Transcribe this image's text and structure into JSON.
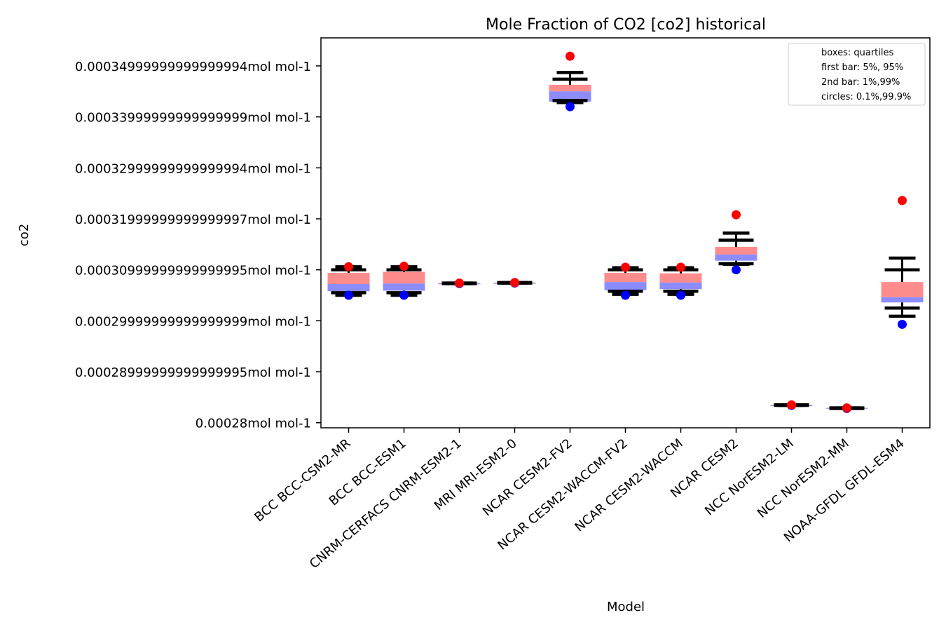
{
  "chart_data": {
    "type": "box",
    "title": "Mole Fraction of CO2 [co2] historical",
    "xlabel": "Model",
    "ylabel": "co2",
    "ylim": [
      0.000279,
      0.0003555
    ],
    "yticks": [
      {
        "value": 0.00028,
        "label": "0.00028mol mol-1"
      },
      {
        "value": 0.00029,
        "label": "0.00028999999999999995mol mol-1"
      },
      {
        "value": 0.0003,
        "label": "0.00029999999999999999mol mol-1"
      },
      {
        "value": 0.00031,
        "label": "0.00030999999999999995mol mol-1"
      },
      {
        "value": 0.00032,
        "label": "0.00031999999999999997mol mol-1"
      },
      {
        "value": 0.00033,
        "label": "0.00032999999999999994mol mol-1"
      },
      {
        "value": 0.00034,
        "label": "0.00033999999999999999mol mol-1"
      },
      {
        "value": 0.00035,
        "label": "0.00034999999999999994mol mol-1"
      }
    ],
    "legend": {
      "position": "top-right",
      "entries": [
        "boxes: quartiles",
        "first bar: 5%, 95%",
        "2nd bar: 1%,99%",
        "circles: 0.1%,99.9%"
      ]
    },
    "colors": {
      "upper_box": "#ff8c8c",
      "lower_box": "#8c8cff",
      "whisker": "#000000",
      "high_circle": "#ff0000",
      "low_circle": "#0000ff"
    },
    "categories": [
      "BCC BCC-CSM2-MR",
      "BCC BCC-ESM1",
      "CNRM-CERFACS CNRM-ESM2-1",
      "MRI MRI-ESM2-0",
      "NCAR CESM2-FV2",
      "NCAR CESM2-WACCM-FV2",
      "NCAR CESM2-WACCM",
      "NCAR CESM2",
      "NCC NorESM2-LM",
      "NCC NorESM2-MM",
      "NOAA-GFDL GFDL-ESM4"
    ],
    "series": [
      {
        "p0_1": 0.000305,
        "p1": 0.000305,
        "p5": 0.0003055,
        "q1": 0.0003058,
        "median": 0.0003072,
        "q3": 0.0003094,
        "p95": 0.00031,
        "p99": 0.0003106,
        "p99_9": 0.0003106
      },
      {
        "p0_1": 0.000305,
        "p1": 0.000305,
        "p5": 0.0003055,
        "q1": 0.0003059,
        "median": 0.0003073,
        "q3": 0.0003096,
        "p95": 0.00031,
        "p99": 0.0003106,
        "p99_9": 0.0003107
      },
      {
        "p0_1": 0.0003073,
        "p1": 0.0003073,
        "p5": 0.0003073,
        "q1": 0.0003072,
        "median": 0.0003073,
        "q3": 0.0003074,
        "p95": 0.0003074,
        "p99": 0.0003074,
        "p99_9": 0.0003074
      },
      {
        "p0_1": 0.0003074,
        "p1": 0.0003074,
        "p5": 0.0003074,
        "q1": 0.0003073,
        "median": 0.0003074,
        "q3": 0.0003075,
        "p95": 0.0003075,
        "p99": 0.0003075,
        "p99_9": 0.0003075
      },
      {
        "p0_1": 0.000342,
        "p1": 0.0003428,
        "p5": 0.0003432,
        "q1": 0.000343,
        "median": 0.000345,
        "q3": 0.0003463,
        "p95": 0.0003474,
        "p99": 0.0003487,
        "p99_9": 0.0003519
      },
      {
        "p0_1": 0.000305,
        "p1": 0.0003052,
        "p5": 0.0003058,
        "q1": 0.000306,
        "median": 0.0003076,
        "q3": 0.0003094,
        "p95": 0.00031,
        "p99": 0.0003104,
        "p99_9": 0.0003105
      },
      {
        "p0_1": 0.000305,
        "p1": 0.0003052,
        "p5": 0.0003058,
        "q1": 0.0003062,
        "median": 0.0003075,
        "q3": 0.0003093,
        "p95": 0.00031,
        "p99": 0.0003104,
        "p99_9": 0.0003105
      },
      {
        "p0_1": 0.00031,
        "p1": 0.0003111,
        "p5": 0.0003112,
        "q1": 0.0003118,
        "median": 0.000313,
        "q3": 0.0003145,
        "p95": 0.0003158,
        "p99": 0.0003172,
        "p99_9": 0.0003208
      },
      {
        "p0_1": 0.0002834,
        "p1": 0.0002834,
        "p5": 0.0002834,
        "q1": 0.0002834,
        "median": 0.0002834,
        "q3": 0.0002835,
        "p95": 0.0002835,
        "p99": 0.0002835,
        "p99_9": 0.0002835
      },
      {
        "p0_1": 0.0002828,
        "p1": 0.0002828,
        "p5": 0.0002828,
        "q1": 0.0002828,
        "median": 0.0002829,
        "q3": 0.0002829,
        "p95": 0.0002829,
        "p99": 0.0002829,
        "p99_9": 0.0002829
      },
      {
        "p0_1": 0.0002993,
        "p1": 0.0003009,
        "p5": 0.0003025,
        "q1": 0.0003036,
        "median": 0.0003046,
        "q3": 0.0003076,
        "p95": 0.00031,
        "p99": 0.0003123,
        "p99_9": 0.0003236
      }
    ]
  }
}
